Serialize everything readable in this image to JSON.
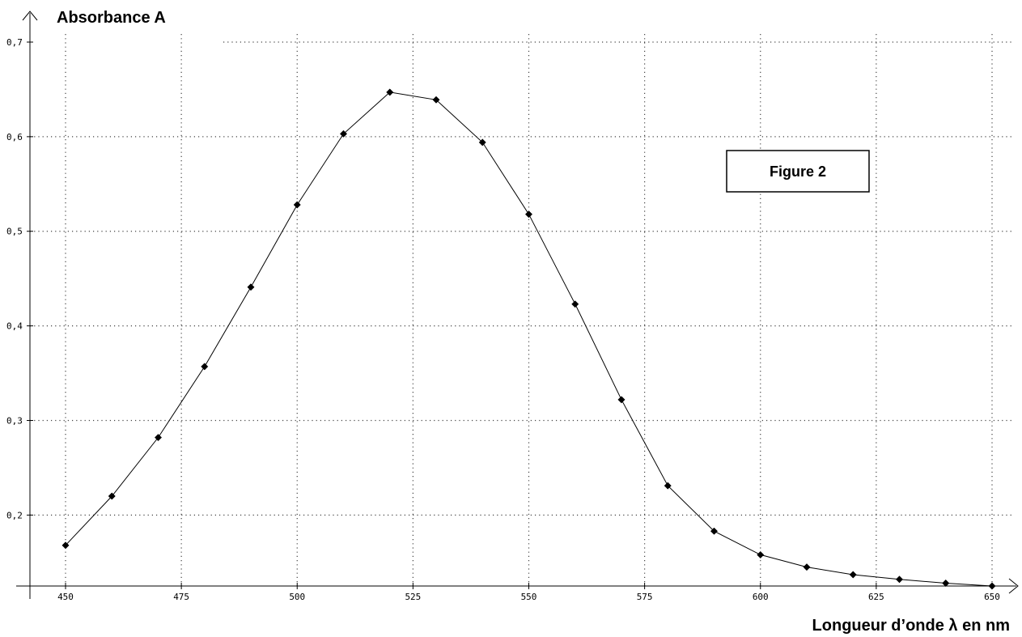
{
  "chart_data": {
    "type": "line",
    "title": "",
    "ylabel": "Absorbance A",
    "xlabel": "Longueur d’onde λ en nm",
    "annotation": "Figure 2",
    "xlim": [
      442,
      652
    ],
    "ylim": [
      0.125,
      0.7
    ],
    "x_ticks": [
      450,
      475,
      500,
      525,
      550,
      575,
      600,
      625,
      650
    ],
    "x_tick_labels": [
      "450",
      "475",
      "500",
      "525",
      "550",
      "575",
      "600",
      "625",
      "650"
    ],
    "y_ticks": [
      0.2,
      0.3,
      0.4,
      0.5,
      0.6,
      0.7
    ],
    "y_tick_labels": [
      "0,2",
      "0,3",
      "0,4",
      "0,5",
      "0,6",
      "0,7"
    ],
    "grid": true,
    "markers": "diamond",
    "series": [
      {
        "x": [
          450,
          460,
          470,
          480,
          490,
          500,
          510,
          520,
          530,
          540,
          550,
          560,
          570,
          580,
          590,
          600,
          610,
          620,
          630,
          640,
          650
        ],
        "values": [
          0.168,
          0.22,
          0.282,
          0.357,
          0.441,
          0.528,
          0.603,
          0.647,
          0.639,
          0.594,
          0.518,
          0.423,
          0.322,
          0.231,
          0.183,
          0.158,
          0.145,
          0.137,
          0.132,
          0.128,
          0.125
        ]
      }
    ],
    "colors": {
      "line": "#000000",
      "marker": "#000000",
      "grid": "#444444",
      "axis": "#000000"
    }
  }
}
